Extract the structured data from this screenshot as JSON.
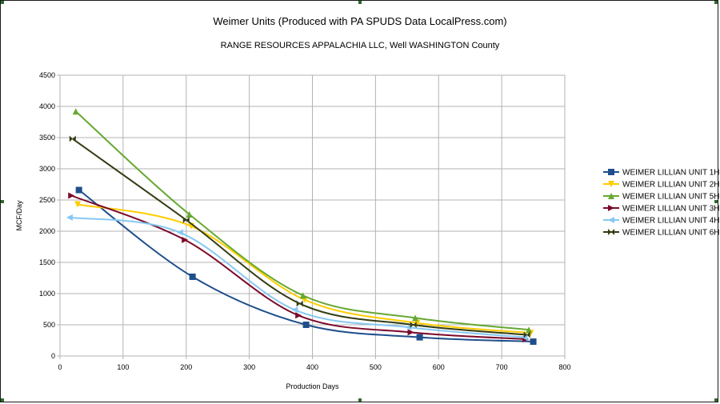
{
  "chart_data": {
    "type": "line",
    "title": "Weimer Units (Produced with PA SPUDS Data LocalPress.com)",
    "subtitle": "RANGE RESOURCES APPALACHIA LLC, Well  WASHINGTON County",
    "xlabel": "Production Days",
    "ylabel": "MCF/Day",
    "xlim": [
      0,
      800
    ],
    "ylim": [
      0,
      4500
    ],
    "x_ticks": [
      0,
      100,
      200,
      300,
      400,
      500,
      600,
      700,
      800
    ],
    "y_ticks": [
      0,
      500,
      1000,
      1500,
      2000,
      2500,
      3000,
      3500,
      4000,
      4500
    ],
    "grid": true,
    "smooth": true,
    "legend_position": "right",
    "series": [
      {
        "name": "WEIMER LILLIAN UNIT 1H",
        "color": "#1f4e8c",
        "marker": "square",
        "x": [
          30,
          210,
          390,
          570,
          750
        ],
        "y": [
          2660,
          1270,
          500,
          300,
          230
        ]
      },
      {
        "name": "WEIMER LILLIAN UNIT 2H",
        "color": "#ffcc00",
        "marker": "triangle-down",
        "x": [
          28,
          208,
          388,
          566,
          746
        ],
        "y": [
          2430,
          2080,
          900,
          530,
          370
        ]
      },
      {
        "name": "WEIMER LILLIAN UNIT 5H",
        "color": "#66a832",
        "marker": "triangle-up",
        "x": [
          25,
          205,
          385,
          563,
          743
        ],
        "y": [
          3920,
          2270,
          970,
          610,
          420
        ]
      },
      {
        "name": "WEIMER LILLIAN UNIT 3H",
        "color": "#7b0a2a",
        "marker": "triangle-right",
        "x": [
          18,
          198,
          378,
          556,
          738
        ],
        "y": [
          2570,
          1860,
          650,
          380,
          270
        ]
      },
      {
        "name": "WEIMER LILLIAN UNIT 4H",
        "color": "#87c8f2",
        "marker": "triangle-left",
        "x": [
          15,
          190,
          372,
          552,
          736
        ],
        "y": [
          2220,
          1980,
          740,
          460,
          300
        ]
      },
      {
        "name": "WEIMER LILLIAN UNIT 6H",
        "color": "#333d14",
        "marker": "bowtie",
        "x": [
          20,
          200,
          380,
          560,
          740
        ],
        "y": [
          3480,
          2180,
          840,
          500,
          340
        ]
      }
    ]
  }
}
